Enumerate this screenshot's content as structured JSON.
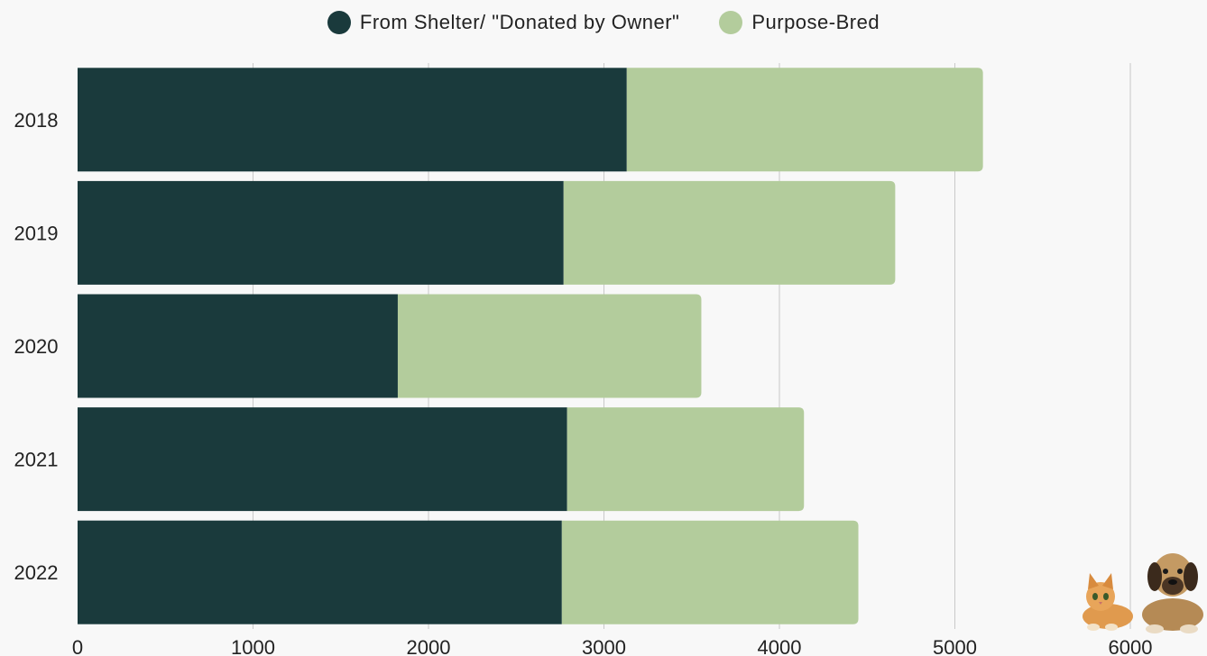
{
  "chart_data": {
    "type": "bar",
    "orientation": "horizontal",
    "stacked": true,
    "title": "",
    "xlabel": "",
    "ylabel": "",
    "categories": [
      "2018",
      "2019",
      "2020",
      "2021",
      "2022"
    ],
    "series": [
      {
        "name": "From Shelter/ \"Donated by Owner\"",
        "color": "#1a3a3c",
        "values": [
          3130,
          2770,
          1825,
          2790,
          2760
        ]
      },
      {
        "name": "Purpose-Bred",
        "color": "#b3cc9c",
        "values": [
          2030,
          1890,
          1730,
          1350,
          1690
        ]
      }
    ],
    "xlim": [
      0,
      6000
    ],
    "xticks": [
      "0",
      "1000",
      "2000",
      "3000",
      "4000",
      "5000",
      "6000"
    ],
    "grid": "vertical",
    "legend_position": "top-center"
  },
  "decoration": {
    "icon": "cat-and-dog-icon"
  }
}
